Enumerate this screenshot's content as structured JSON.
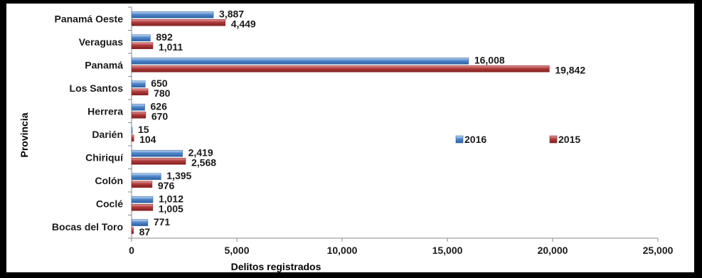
{
  "chart_data": {
    "type": "bar",
    "orientation": "horizontal",
    "categories": [
      "Panamá Oeste",
      "Veraguas",
      "Panamá",
      "Los Santos",
      "Herrera",
      "Darién",
      "Chiriquí",
      "Colón",
      "Coclé",
      "Bocas del Toro"
    ],
    "series": [
      {
        "name": "2016",
        "values": [
          3887,
          892,
          16008,
          650,
          626,
          15,
          2419,
          1395,
          1012,
          771
        ],
        "labels": [
          "3,887",
          "892",
          "16,008",
          "650",
          "626",
          "15",
          "2,419",
          "1,395",
          "1,012",
          "771"
        ]
      },
      {
        "name": "2015",
        "values": [
          4449,
          1011,
          19842,
          780,
          670,
          104,
          2568,
          976,
          1005,
          87
        ],
        "labels": [
          "4,449",
          "1,011",
          "19,842",
          "780",
          "670",
          "104",
          "2,568",
          "976",
          "1,005",
          "87"
        ]
      }
    ],
    "xlim": [
      0,
      25000
    ],
    "xticks": [
      0,
      5000,
      10000,
      15000,
      20000,
      25000
    ],
    "xtick_labels": [
      "0",
      "5,000",
      "10,000",
      "15,000",
      "20,000",
      "25,000"
    ],
    "xlabel": "Delitos registrados",
    "ylabel": "Provincia",
    "legend_position": "right"
  },
  "colors": {
    "series_2016": "#4f87cc",
    "series_2015": "#b13a3a"
  }
}
